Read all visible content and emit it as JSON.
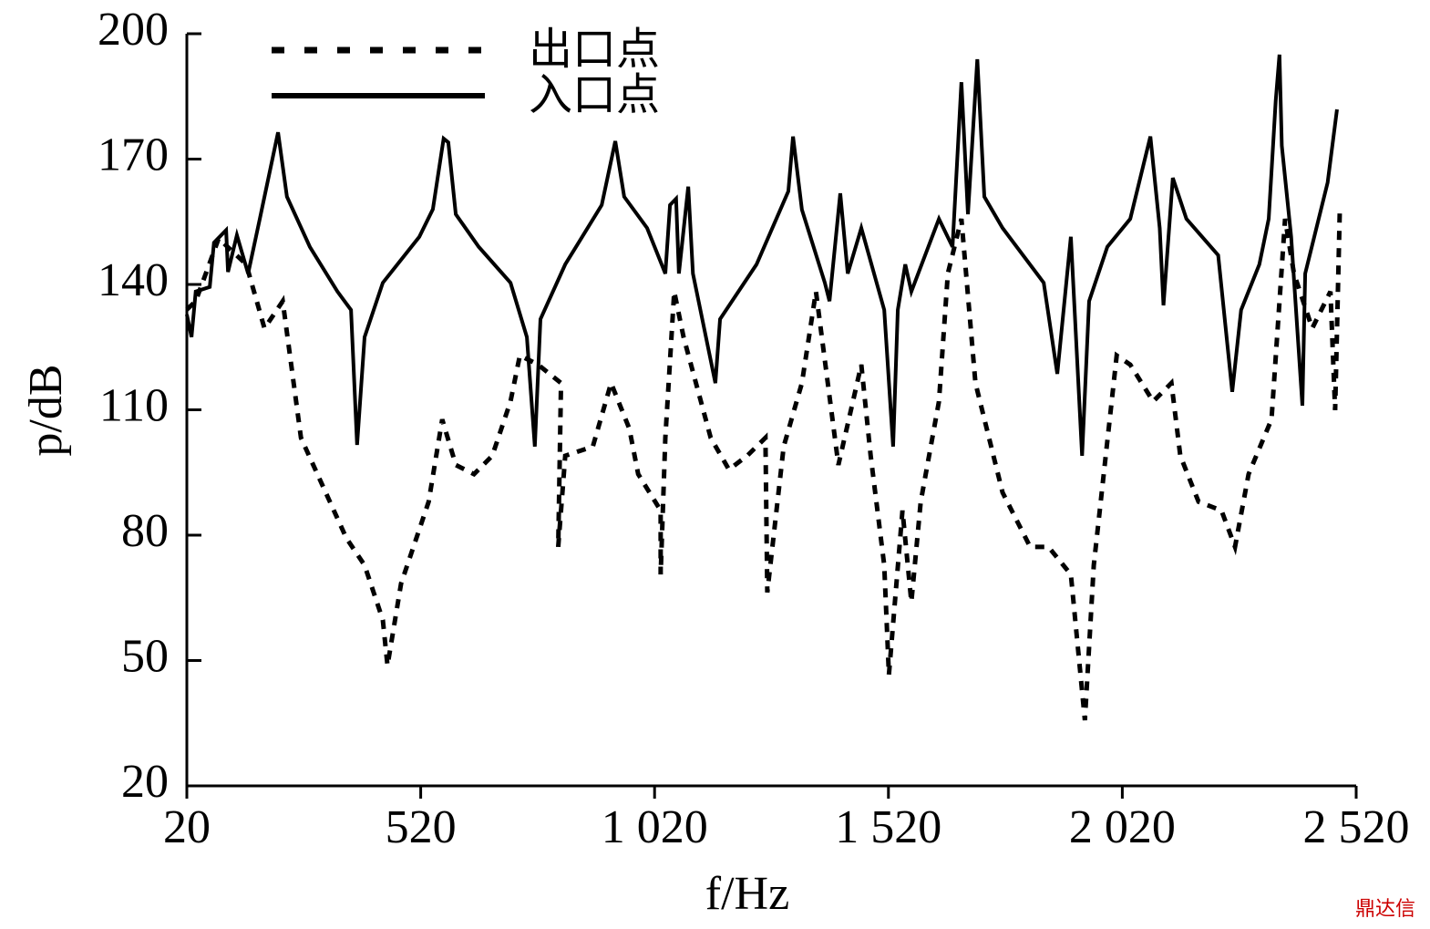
{
  "chart_data": {
    "type": "line",
    "xlabel": "f/Hz",
    "ylabel": "p/dB",
    "watermark": "鼎达信",
    "xlim": [
      20,
      2520
    ],
    "ylim": [
      20,
      200
    ],
    "xticks": [
      20,
      520,
      {
        "value": 1020,
        "label": "1 020"
      },
      {
        "value": 1520,
        "label": "1 520"
      },
      {
        "value": 2020,
        "label": "2 020"
      },
      {
        "value": 2520,
        "label": "2 520"
      }
    ],
    "yticks": [
      20,
      50,
      80,
      110,
      140,
      170,
      200
    ],
    "legend": "top-left",
    "series": [
      {
        "name": "出口点",
        "color": "#000000",
        "dash": true,
        "x": [
          20,
          39,
          88,
          147,
          186,
          225,
          264,
          361,
          400,
          439,
          449,
          478,
          537,
          566,
          595,
          634,
          673,
          712,
          732,
          771,
          820,
          814,
          829,
          888,
          927,
          966,
          985,
          1033,
          1033,
          1043,
          1062,
          1082,
          1140,
          1179,
          1218,
          1257,
          1261,
          1296,
          1335,
          1365,
          1413,
          1462,
          1482,
          1511,
          1521,
          1550,
          1569,
          1589,
          1628,
          1647,
          1676,
          1706,
          1764,
          1823,
          1862,
          1910,
          1940,
          1959,
          2008,
          2037,
          2086,
          2125,
          2144,
          2183,
          2232,
          2261,
          2290,
          2339,
          2368,
          2387,
          2426,
          2465,
          2475,
          2485
        ],
        "values": [
          134,
          136,
          151,
          144.8,
          129.5,
          136,
          103.3,
          79.3,
          72.8,
          59.7,
          48.8,
          68.4,
          88,
          107.7,
          96.8,
          94.6,
          99,
          112,
          123,
          120.8,
          116.4,
          77.2,
          99,
          101.2,
          116.4,
          105.5,
          94.6,
          85.9,
          70.6,
          103.3,
          138.3,
          127.4,
          103.3,
          95.7,
          99,
          103.3,
          66.3,
          101.2,
          116.4,
          138.3,
          96.8,
          120.8,
          99,
          72.8,
          46.6,
          85.9,
          64,
          88,
          112,
          142.6,
          155.7,
          116.4,
          90.2,
          77.2,
          77.2,
          70.6,
          35.7,
          72.8,
          123,
          120.8,
          112,
          116.4,
          99,
          88,
          85.9,
          77.2,
          94.6,
          107.7,
          155.7,
          142.6,
          129.5,
          138.3,
          109.9,
          157.9
        ]
      },
      {
        "name": "入口点",
        "color": "#000000",
        "dash": false,
        "x": [
          20,
          30,
          39,
          69,
          78,
          104,
          108,
          127,
          151,
          176,
          215,
          234,
          283,
          342,
          371,
          384,
          400,
          439,
          517,
          546,
          569,
          579,
          595,
          644,
          712,
          747,
          764,
          776,
          829,
          907,
          936,
          955,
          1004,
          1043,
          1053,
          1066,
          1072,
          1092,
          1102,
          1150,
          1160,
          1238,
          1306,
          1316,
          1335,
          1384,
          1394,
          1417,
          1433,
          1462,
          1511,
          1530,
          1540,
          1556,
          1569,
          1628,
          1657,
          1676,
          1690,
          1710,
          1725,
          1764,
          1852,
          1881,
          1910,
          1934,
          1949,
          1988,
          2037,
          2080,
          2100,
          2108,
          2128,
          2157,
          2225,
          2255,
          2274,
          2313,
          2333,
          2348,
          2356,
          2361,
          2381,
          2405,
          2411,
          2459,
          2479
        ],
        "values": [
          132.8,
          127.4,
          138.3,
          139.4,
          150,
          153,
          143,
          151.8,
          142.6,
          155.7,
          176.4,
          161,
          149,
          138.3,
          133.9,
          101.6,
          127.4,
          140.4,
          151.4,
          158,
          174.9,
          174,
          156.8,
          149,
          140.4,
          127.4,
          101.2,
          131.7,
          144.8,
          159,
          174.3,
          161,
          153.5,
          142.6,
          159,
          160.5,
          142.6,
          163.4,
          142.6,
          116.4,
          131.7,
          144.8,
          162.3,
          175.4,
          157.9,
          140.4,
          136,
          161.8,
          142.6,
          153.5,
          133.9,
          101.2,
          133.9,
          144.8,
          138.3,
          155.7,
          149,
          188.4,
          156.8,
          193.9,
          161,
          153.5,
          140.4,
          118.6,
          151.4,
          99,
          136,
          149,
          155.7,
          175.4,
          153.5,
          135,
          165.5,
          155.7,
          147,
          114.3,
          133.9,
          144.8,
          155.7,
          184,
          195,
          173.2,
          151.4,
          111,
          142.6,
          164.4,
          181.9
        ]
      }
    ]
  }
}
